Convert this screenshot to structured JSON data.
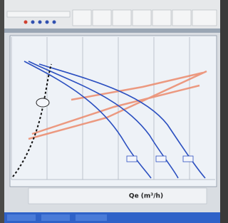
{
  "chart_window": {
    "x_axis_label": "Qe (m³/h)"
  }
}
